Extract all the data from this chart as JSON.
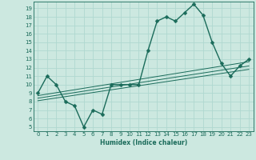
{
  "xlabel": "Humidex (Indice chaleur)",
  "bg_color": "#cce8e0",
  "line_color": "#1a6b5a",
  "grid_color": "#b0d8d0",
  "xlim": [
    -0.5,
    23.5
  ],
  "ylim": [
    4.5,
    19.8
  ],
  "xticks": [
    0,
    1,
    2,
    3,
    4,
    5,
    6,
    7,
    8,
    9,
    10,
    11,
    12,
    13,
    14,
    15,
    16,
    17,
    18,
    19,
    20,
    21,
    22,
    23
  ],
  "yticks": [
    5,
    6,
    7,
    8,
    9,
    10,
    11,
    12,
    13,
    14,
    15,
    16,
    17,
    18,
    19
  ],
  "main_line_x": [
    0,
    1,
    2,
    3,
    4,
    5,
    6,
    7,
    8,
    9,
    10,
    11,
    12,
    13,
    14,
    15,
    16,
    17,
    18,
    19,
    20,
    21,
    22,
    23
  ],
  "main_line_y": [
    9.0,
    11.0,
    10.0,
    8.0,
    7.5,
    5.0,
    7.0,
    6.5,
    10.0,
    10.0,
    10.0,
    10.0,
    14.0,
    17.5,
    18.0,
    17.5,
    18.5,
    19.5,
    18.2,
    15.0,
    12.5,
    11.0,
    12.2,
    13.0
  ],
  "reg_line1_x": [
    0,
    23
  ],
  "reg_line1_y": [
    8.7,
    12.7
  ],
  "reg_line2_x": [
    0,
    23
  ],
  "reg_line2_y": [
    8.4,
    12.2
  ],
  "reg_line3_x": [
    0,
    23
  ],
  "reg_line3_y": [
    8.1,
    11.8
  ],
  "marker_size": 2.5,
  "line_width": 1.0
}
